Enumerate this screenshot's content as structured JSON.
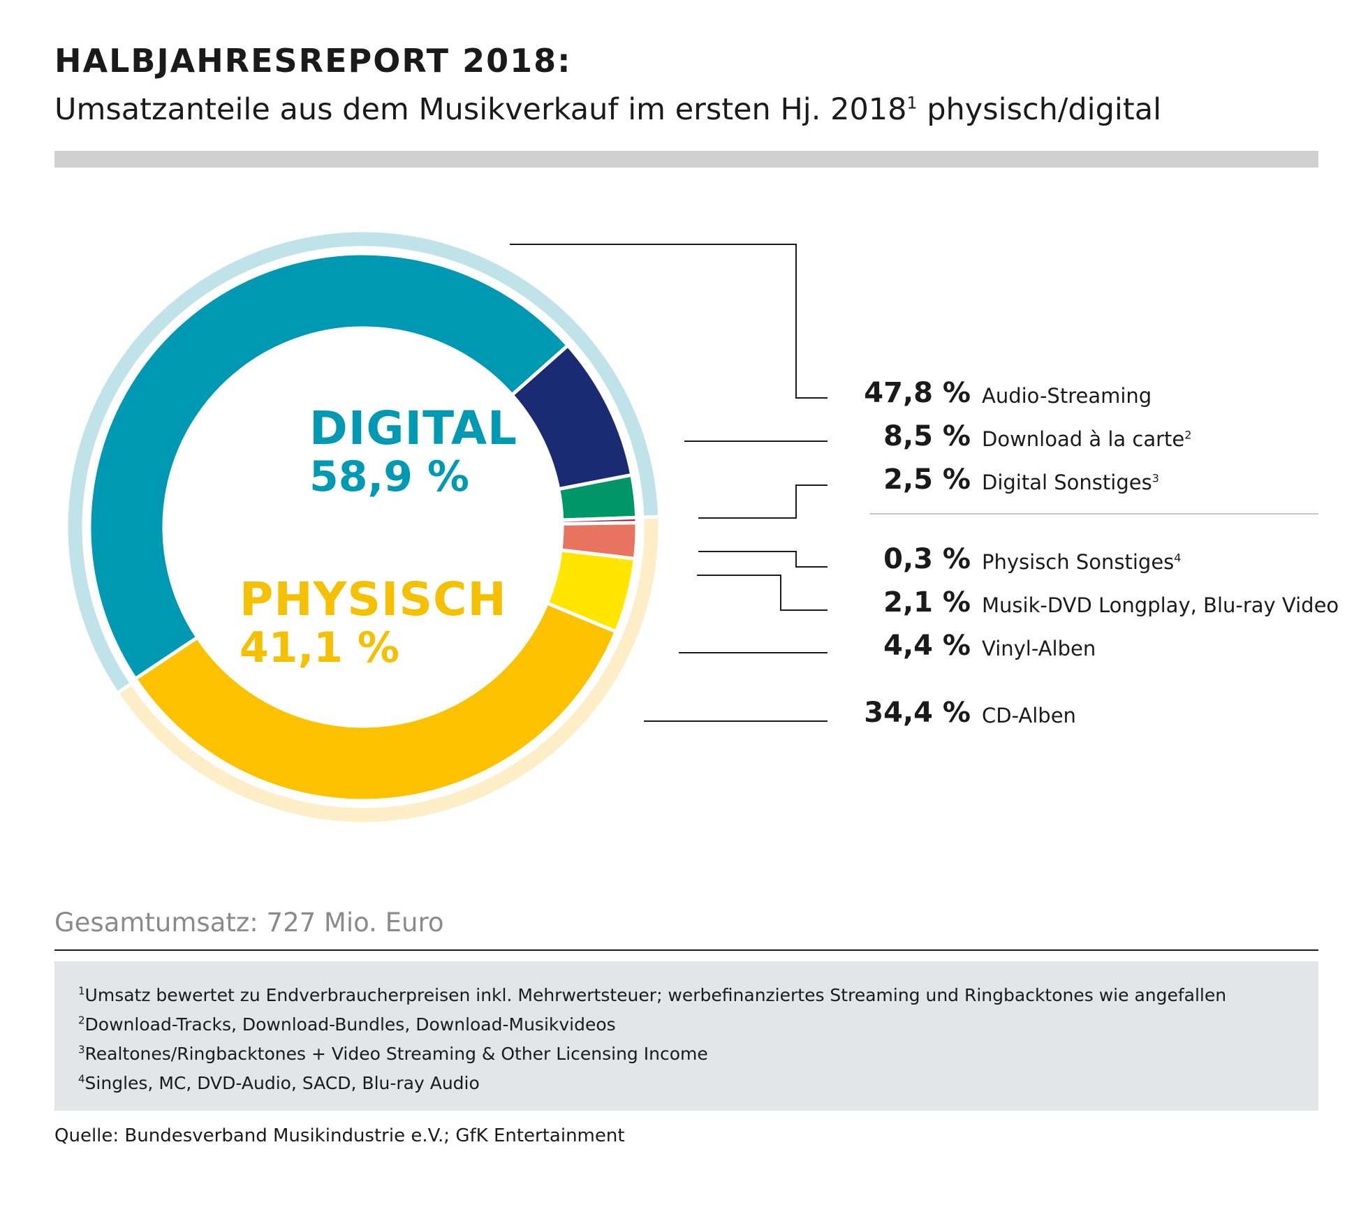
{
  "title": "HALBJAHRESREPORT 2018:",
  "subtitle": {
    "text": "Umsatzanteile aus dem Musikverkauf im ersten Hj. 2018",
    "sup": "1",
    "tail": " physisch/digital"
  },
  "center": {
    "digital_label": "DIGITAL",
    "digital_value": "58,9 %",
    "physisch_label": "PHYSISCH",
    "physisch_value": "41,1 %"
  },
  "chart_data": {
    "type": "pie",
    "style": "donut",
    "groups": [
      {
        "name": "DIGITAL",
        "value": 58.9,
        "color": "#c0e3ea"
      },
      {
        "name": "PHYSISCH",
        "value": 41.1,
        "color": "#fdeec7"
      }
    ],
    "slices": [
      {
        "label": "Audio-Streaming",
        "sup": "",
        "value": 47.8,
        "display": "47,8 %",
        "color": "#0099b4",
        "group": "DIGITAL"
      },
      {
        "label": "Download à la carte",
        "sup": "2",
        "value": 8.5,
        "display": "8,5 %",
        "color": "#1a2a73",
        "group": "DIGITAL"
      },
      {
        "label": "Digital Sonstiges",
        "sup": "3",
        "value": 2.5,
        "display": "2,5 %",
        "color": "#009668",
        "group": "DIGITAL"
      },
      {
        "label": "Physisch Sonstiges",
        "sup": "4",
        "value": 0.3,
        "display": "0,3 %",
        "color": "#a8193a",
        "group": "PHYSISCH"
      },
      {
        "label": "Musik-DVD Longplay, Blu-ray Video",
        "sup": "",
        "value": 2.1,
        "display": "2,1 %",
        "color": "#e8735f",
        "group": "PHYSISCH"
      },
      {
        "label": "Vinyl-Alben",
        "sup": "",
        "value": 4.4,
        "display": "4,4 %",
        "color": "#ffe500",
        "group": "PHYSISCH"
      },
      {
        "label": "CD-Alben",
        "sup": "",
        "value": 34.4,
        "display": "34,4 %",
        "color": "#fcc200",
        "group": "PHYSISCH"
      }
    ]
  },
  "total": "Gesamtumsatz: 727 Mio. Euro",
  "footnotes": [
    {
      "sup": "1",
      "text": "Umsatz bewertet zu Endverbraucherpreisen inkl. Mehrwertsteuer; werbefinanziertes Streaming und Ringbacktones wie angefallen"
    },
    {
      "sup": "2",
      "text": "Download-Tracks, Download-Bundles, Download-Musikvideos"
    },
    {
      "sup": "3",
      "text": "Realtones/Ringbacktones + Video Streaming & Other Licensing Income"
    },
    {
      "sup": "4",
      "text": "Singles, MC, DVD-Audio, SACD, Blu-ray Audio"
    }
  ],
  "source": "Quelle: Bundesverband Musikindustrie e.V.; GfK Entertainment"
}
